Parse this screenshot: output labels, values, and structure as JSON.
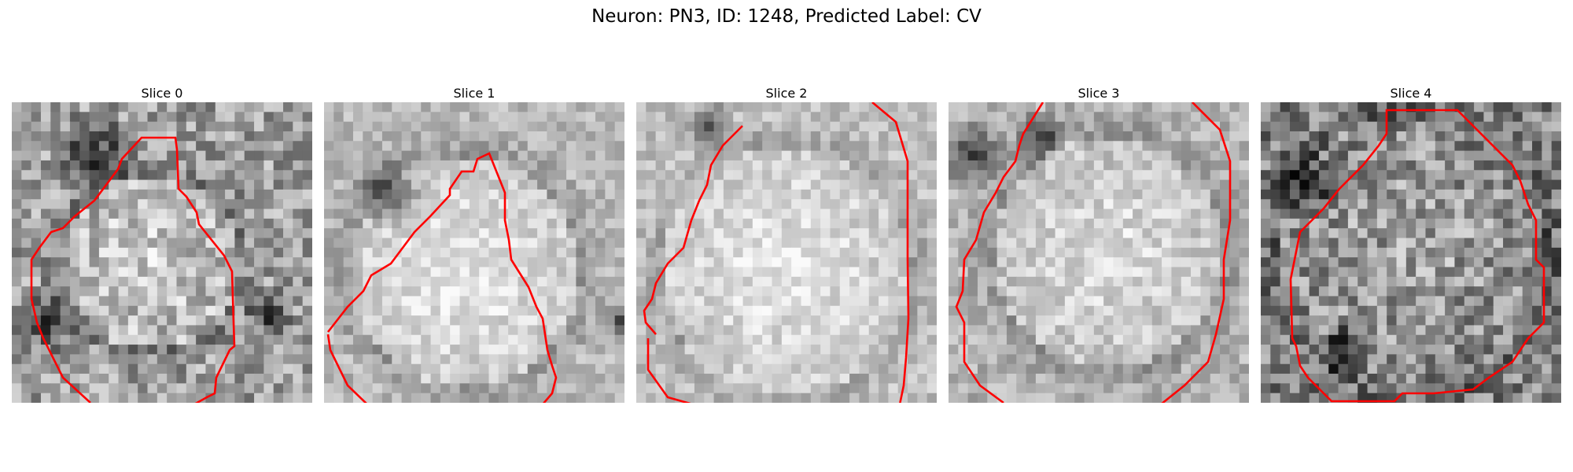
{
  "figure": {
    "title": "Neuron: PN3, ID: 1248, Predicted Label: CV"
  },
  "contour_color": "#ff0000",
  "panels": [
    {
      "label": "Slice 0"
    },
    {
      "label": "Slice 1"
    },
    {
      "label": "Slice 2"
    },
    {
      "label": "Slice 3"
    },
    {
      "label": "Slice 4"
    }
  ]
}
